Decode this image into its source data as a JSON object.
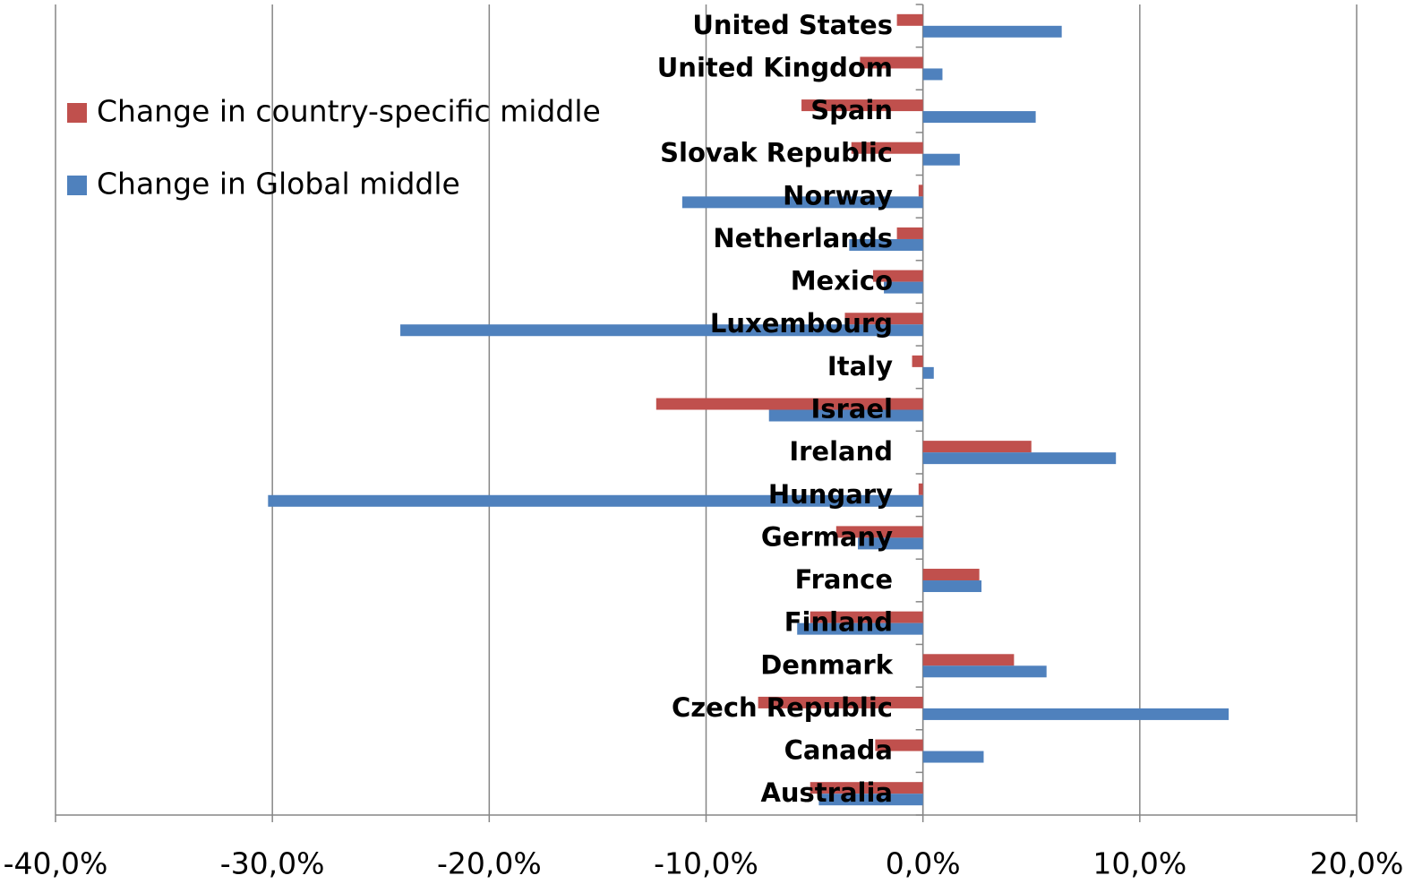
{
  "chart_data": {
    "type": "bar",
    "orientation": "horizontal",
    "categories": [
      "Australia",
      "Canada",
      "Czech Republic",
      "Denmark",
      "Finland",
      "France",
      "Germany",
      "Hungary",
      "Ireland",
      "Israel",
      "Italy",
      "Luxembourg",
      "Mexico",
      "Netherlands",
      "Norway",
      "Slovak Republic",
      "Spain",
      "United Kingdom",
      "United States"
    ],
    "series": [
      {
        "name": "Change in country-specific middle",
        "color": "#c0504d",
        "values": [
          -5.2,
          -2.2,
          -7.6,
          4.2,
          -5.2,
          2.6,
          -4.0,
          -0.2,
          5.0,
          -12.3,
          -0.5,
          -3.6,
          -2.3,
          -1.2,
          -0.2,
          -3.3,
          -5.6,
          -2.9,
          -1.2
        ]
      },
      {
        "name": "Change in Global middle",
        "color": "#4f81bd",
        "values": [
          -4.8,
          2.8,
          14.1,
          5.7,
          -5.8,
          2.7,
          -3.0,
          -30.2,
          8.9,
          -7.1,
          0.5,
          -24.1,
          -1.8,
          -3.4,
          -11.1,
          1.7,
          5.2,
          0.9,
          6.4
        ]
      }
    ],
    "xlim": [
      -40,
      20
    ],
    "xticks": [
      {
        "value": -40,
        "label": "-40,0%"
      },
      {
        "value": -30,
        "label": "-30,0%"
      },
      {
        "value": -20,
        "label": "-20,0%"
      },
      {
        "value": -10,
        "label": "-10,0%"
      },
      {
        "value": 0,
        "label": "0,0%"
      },
      {
        "value": 10,
        "label": "10,0%"
      },
      {
        "value": 20,
        "label": "20,0%"
      }
    ],
    "grid": true,
    "legend": "top-left"
  }
}
